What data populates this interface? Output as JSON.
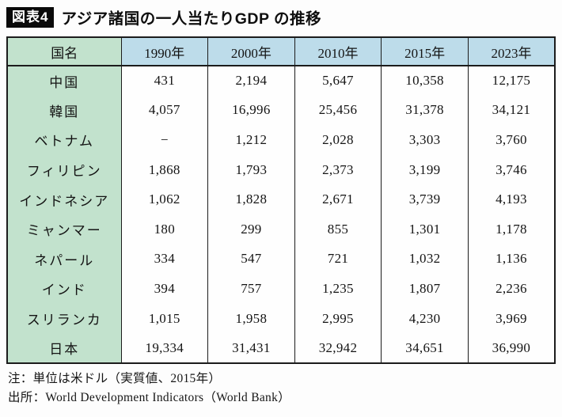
{
  "header": {
    "badge": "図表4",
    "title": "アジア諸国の一人当たりGDP の推移"
  },
  "table": {
    "columns": [
      "国名",
      "1990年",
      "2000年",
      "2010年",
      "2015年",
      "2023年"
    ],
    "rows": [
      {
        "country": "中国",
        "values": [
          "431",
          "2,194",
          "5,647",
          "10,358",
          "12,175"
        ]
      },
      {
        "country": "韓国",
        "values": [
          "4,057",
          "16,996",
          "25,456",
          "31,378",
          "34,121"
        ]
      },
      {
        "country": "ベトナム",
        "values": [
          "−",
          "1,212",
          "2,028",
          "3,303",
          "3,760"
        ]
      },
      {
        "country": "フィリピン",
        "values": [
          "1,868",
          "1,793",
          "2,373",
          "3,199",
          "3,746"
        ]
      },
      {
        "country": "インドネシア",
        "values": [
          "1,062",
          "1,828",
          "2,671",
          "3,739",
          "4,193"
        ]
      },
      {
        "country": "ミャンマー",
        "values": [
          "180",
          "299",
          "855",
          "1,301",
          "1,178"
        ]
      },
      {
        "country": "ネパール",
        "values": [
          "334",
          "547",
          "721",
          "1,032",
          "1,136"
        ]
      },
      {
        "country": "インド",
        "values": [
          "394",
          "757",
          "1,235",
          "1,807",
          "2,236"
        ]
      },
      {
        "country": "スリランカ",
        "values": [
          "1,015",
          "1,958",
          "2,995",
          "4,230",
          "3,969"
        ]
      },
      {
        "country": "日本",
        "values": [
          "19,334",
          "31,431",
          "32,942",
          "34,651",
          "36,990"
        ]
      }
    ]
  },
  "notes": {
    "unit": "注：単位は米ドル（実質値、2015年）",
    "source": "出所：World Development Indicators（World Bank）"
  },
  "colors": {
    "country_column_green": "#c2e2cd",
    "year_header_blue": "#bddcea",
    "table_border": "#1c1c1c",
    "badge_background": "#0a0a0a",
    "badge_text": "#ffffff"
  }
}
